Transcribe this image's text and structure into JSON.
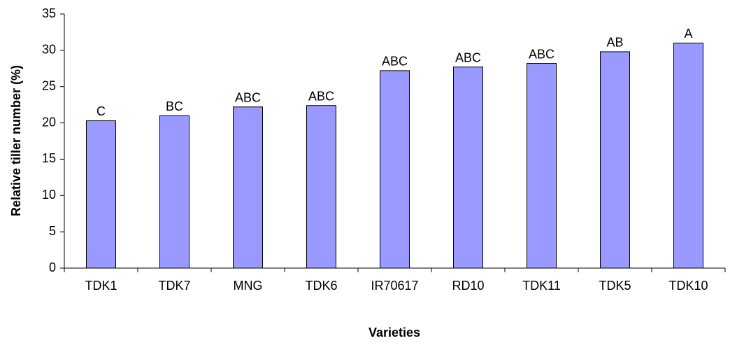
{
  "chart_data": {
    "type": "bar",
    "x_label": "Varieties",
    "y_label": "Relative tiller number (%)",
    "categories": [
      "TDK1",
      "TDK7",
      "MNG",
      "TDK6",
      "IR70617",
      "RD10",
      "TDK11",
      "TDK5",
      "TDK10"
    ],
    "values": [
      20.3,
      21.0,
      22.2,
      22.4,
      27.2,
      27.7,
      28.2,
      29.8,
      31.0
    ],
    "annotations": [
      "C",
      "BC",
      "ABC",
      "ABC",
      "ABC",
      "ABC",
      "ABC",
      "AB",
      "A"
    ],
    "color": "#9999ff",
    "ylim": [
      0,
      35
    ],
    "yticks": [
      0,
      5,
      10,
      15,
      20,
      25,
      30,
      35
    ],
    "grid": false
  }
}
